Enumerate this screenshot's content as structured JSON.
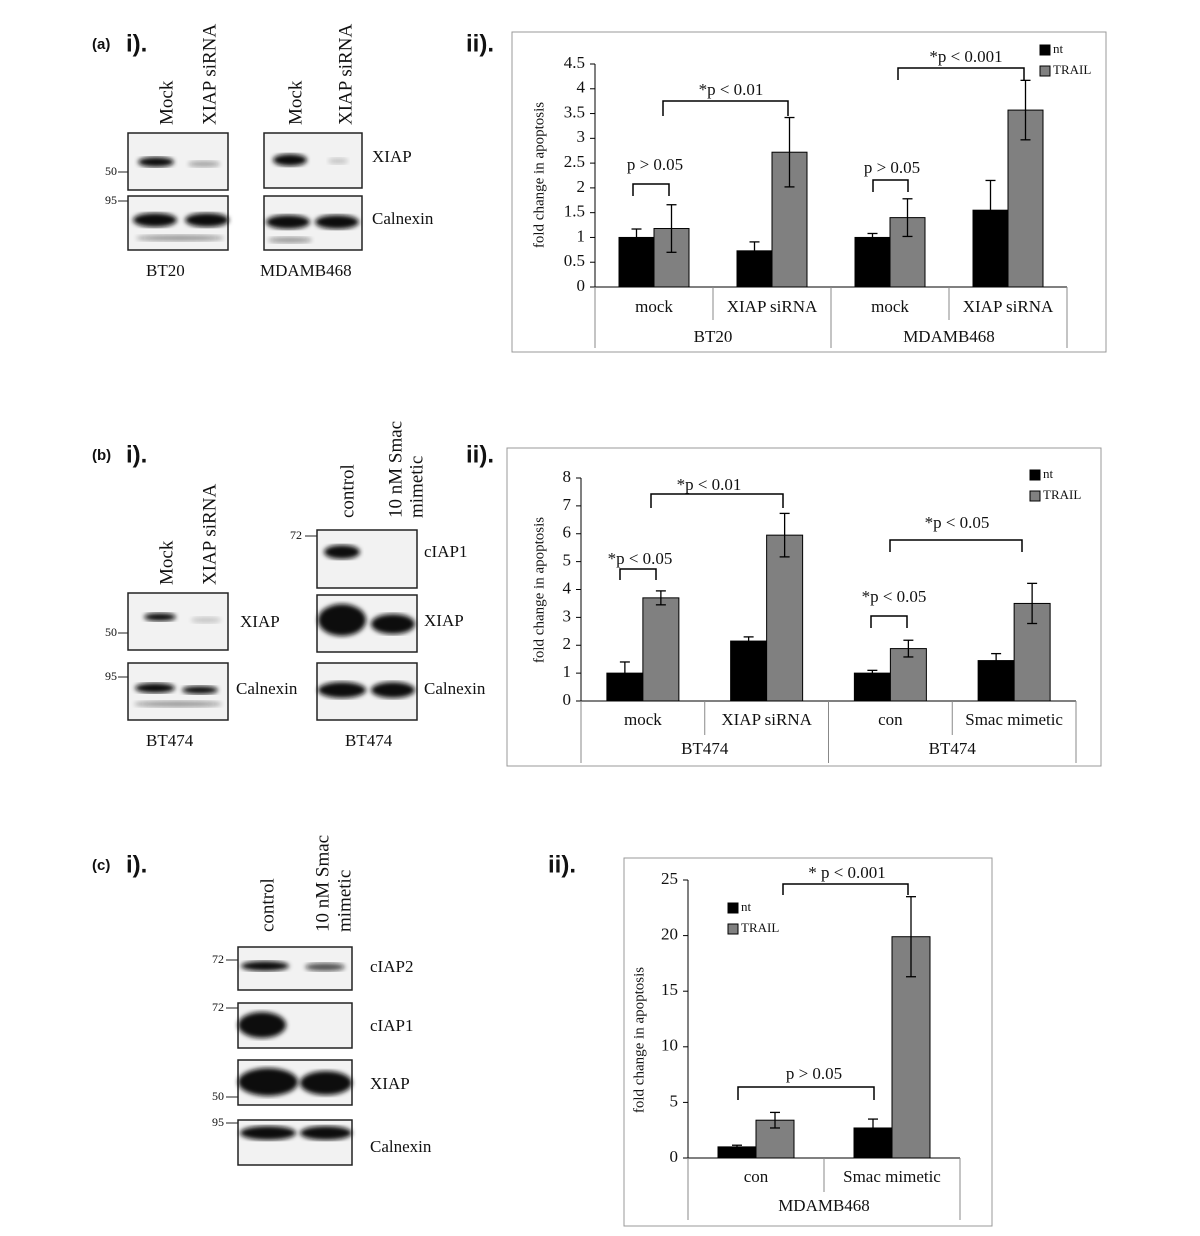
{
  "panels": [
    {
      "letter": "(a)",
      "blot_title": "i).",
      "chart_title": "ii)."
    },
    {
      "letter": "(b)",
      "blot_title": "i).",
      "chart_title": "ii)."
    },
    {
      "letter": "(c)",
      "blot_title": "i).",
      "chart_title": "ii)."
    }
  ],
  "blots": {
    "a_left": {
      "lanes": [
        "Mock",
        "XIAP siRNA"
      ],
      "markers": [
        "50",
        "95"
      ],
      "cell_line": "BT20"
    },
    "a_right": {
      "lanes": [
        "Mock",
        "XIAP siRNA"
      ],
      "bands": [
        "XIAP",
        "Calnexin"
      ],
      "cell_line": "MDAMB468"
    },
    "b_left": {
      "lanes": [
        "Mock",
        "XIAP siRNA"
      ],
      "markers": [
        "50",
        "95"
      ],
      "bands": [
        "XIAP",
        "Calnexin"
      ],
      "cell_line": "BT474"
    },
    "b_right": {
      "lanes": [
        "control",
        [
          "10 nM Smac",
          "mimetic"
        ]
      ],
      "markers": [
        "72"
      ],
      "bands": [
        "cIAP1",
        "XIAP",
        "Calnexin"
      ],
      "cell_line": "BT474"
    },
    "c": {
      "lanes": [
        "control",
        [
          "10 nM Smac",
          "mimetic"
        ]
      ],
      "markers": [
        "72",
        "72",
        "50",
        "95"
      ],
      "bands": [
        "cIAP2",
        "cIAP1",
        "XIAP",
        "Calnexin"
      ]
    }
  },
  "chart_data": [
    {
      "type": "bar",
      "y_label": "fold change in apoptosis",
      "categories": [
        "mock",
        "XIAP siRNA",
        "mock",
        "XIAP siRNA"
      ],
      "groups": [
        "BT20",
        "MDAMB468"
      ],
      "series": [
        {
          "name": "nt",
          "color": "#000000",
          "values": [
            1.0,
            0.73,
            1.0,
            1.55
          ],
          "errors": [
            0.17,
            0.18,
            0.08,
            0.6
          ]
        },
        {
          "name": "TRAIL",
          "color": "#808080",
          "values": [
            1.18,
            2.72,
            1.4,
            3.57
          ],
          "errors": [
            0.48,
            0.7,
            0.38,
            0.6
          ]
        }
      ],
      "ylim": [
        0,
        4.5
      ],
      "yticks": [
        0,
        0.5,
        1,
        1.5,
        2,
        2.5,
        3,
        3.5,
        4,
        4.5
      ],
      "annotations": [
        "p > 0.05",
        "*p < 0.01",
        "p > 0.05",
        "*p < 0.001"
      ]
    },
    {
      "type": "bar",
      "y_label": "fold change in apoptosis",
      "categories": [
        "mock",
        "XIAP siRNA",
        "con",
        "Smac mimetic"
      ],
      "groups": [
        "BT474",
        "BT474"
      ],
      "series": [
        {
          "name": "nt",
          "color": "#000000",
          "values": [
            1.0,
            2.15,
            1.0,
            1.45
          ],
          "errors": [
            0.4,
            0.15,
            0.1,
            0.25
          ]
        },
        {
          "name": "TRAIL",
          "color": "#808080",
          "values": [
            3.7,
            5.95,
            1.88,
            3.5
          ],
          "errors": [
            0.25,
            0.78,
            0.3,
            0.72
          ]
        }
      ],
      "ylim": [
        0,
        8
      ],
      "yticks": [
        0,
        1,
        2,
        3,
        4,
        5,
        6,
        7,
        8
      ],
      "annotations": [
        "*p < 0.05",
        "*p < 0.01",
        "*p < 0.05",
        "*p < 0.05"
      ]
    },
    {
      "type": "bar",
      "y_label": "fold change in apoptosis",
      "categories": [
        "con",
        "Smac mimetic"
      ],
      "groups": [
        "MDAMB468"
      ],
      "series": [
        {
          "name": "nt",
          "color": "#000000",
          "values": [
            1.0,
            2.7
          ],
          "errors": [
            0.15,
            0.8
          ]
        },
        {
          "name": "TRAIL",
          "color": "#808080",
          "values": [
            3.4,
            19.9
          ],
          "errors": [
            0.7,
            3.6
          ]
        }
      ],
      "ylim": [
        0,
        25
      ],
      "yticks": [
        0,
        5,
        10,
        15,
        20,
        25
      ],
      "annotations": [
        "* p < 0.001",
        "p > 0.05"
      ]
    }
  ]
}
